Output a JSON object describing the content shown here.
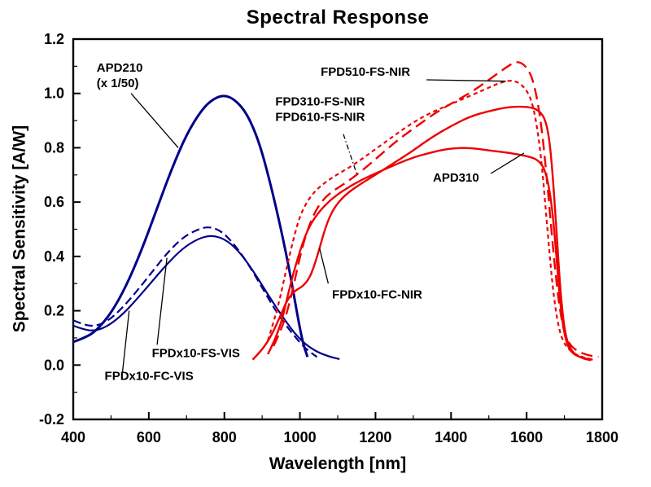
{
  "chart_data": {
    "type": "line",
    "title": "Spectral Response",
    "xlabel": "Wavelength [nm]",
    "ylabel": "Spectral Sensitivity [A/W]",
    "xlim": [
      400,
      1800
    ],
    "ylim": [
      -0.2,
      1.2
    ],
    "xticks": [
      400,
      600,
      800,
      1000,
      1200,
      1400,
      1600,
      1800
    ],
    "xticklabels": [
      "400",
      "600",
      "800",
      "1000",
      "1200",
      "1400",
      "1600",
      "1800"
    ],
    "yticks": [
      -0.2,
      0.0,
      0.2,
      0.4,
      0.6,
      0.8,
      1.0,
      1.2
    ],
    "yticklabels": [
      "-0.2",
      "0.0",
      "0.2",
      "0.4",
      "0.6",
      "0.8",
      "1.0",
      "1.2"
    ],
    "x_minor_step": 100,
    "y_minor_step": 0.1,
    "grid": false,
    "legend": "inline-annotations",
    "colors": {
      "vis_series": "#00008B",
      "nir_series": "#EE0000",
      "axis": "#000000"
    },
    "series": [
      {
        "id": "apd210",
        "name": "APD210 (x 1/50)",
        "color": "#00008B",
        "style": "solid",
        "width": 3,
        "points": [
          [
            400,
            0.085
          ],
          [
            430,
            0.1
          ],
          [
            460,
            0.125
          ],
          [
            500,
            0.19
          ],
          [
            540,
            0.29
          ],
          [
            580,
            0.42
          ],
          [
            620,
            0.57
          ],
          [
            660,
            0.72
          ],
          [
            700,
            0.85
          ],
          [
            740,
            0.94
          ],
          [
            770,
            0.98
          ],
          [
            800,
            0.995
          ],
          [
            830,
            0.975
          ],
          [
            860,
            0.925
          ],
          [
            890,
            0.83
          ],
          [
            920,
            0.68
          ],
          [
            950,
            0.5
          ],
          [
            975,
            0.33
          ],
          [
            995,
            0.17
          ],
          [
            1008,
            0.08
          ],
          [
            1020,
            0.03
          ]
        ]
      },
      {
        "id": "fpdx10-fs-vis",
        "name": "FPDx10-FS-VIS",
        "color": "#00008B",
        "style": "dash",
        "width": 2.2,
        "points": [
          [
            400,
            0.165
          ],
          [
            425,
            0.15
          ],
          [
            455,
            0.142
          ],
          [
            490,
            0.16
          ],
          [
            530,
            0.21
          ],
          [
            570,
            0.275
          ],
          [
            610,
            0.345
          ],
          [
            650,
            0.415
          ],
          [
            690,
            0.47
          ],
          [
            730,
            0.5
          ],
          [
            760,
            0.51
          ],
          [
            790,
            0.495
          ],
          [
            820,
            0.455
          ],
          [
            860,
            0.38
          ],
          [
            900,
            0.285
          ],
          [
            940,
            0.19
          ],
          [
            980,
            0.115
          ],
          [
            1015,
            0.06
          ],
          [
            1045,
            0.03
          ]
        ]
      },
      {
        "id": "fpdx10-fc-vis",
        "name": "FPDx10-FC-VIS",
        "color": "#00008B",
        "style": "solid",
        "width": 2.2,
        "points": [
          [
            400,
            0.145
          ],
          [
            425,
            0.132
          ],
          [
            455,
            0.125
          ],
          [
            490,
            0.142
          ],
          [
            530,
            0.185
          ],
          [
            570,
            0.245
          ],
          [
            610,
            0.31
          ],
          [
            650,
            0.375
          ],
          [
            690,
            0.43
          ],
          [
            730,
            0.465
          ],
          [
            765,
            0.478
          ],
          [
            800,
            0.465
          ],
          [
            835,
            0.425
          ],
          [
            875,
            0.35
          ],
          [
            915,
            0.26
          ],
          [
            955,
            0.175
          ],
          [
            995,
            0.1
          ],
          [
            1035,
            0.055
          ],
          [
            1075,
            0.032
          ],
          [
            1105,
            0.022
          ]
        ]
      },
      {
        "id": "fpd510-fs-nir",
        "name": "FPD510-FS-NIR",
        "color": "#EE0000",
        "style": "longdash",
        "width": 2.4,
        "points": [
          [
            930,
            0.07
          ],
          [
            955,
            0.14
          ],
          [
            980,
            0.27
          ],
          [
            1000,
            0.4
          ],
          [
            1020,
            0.5
          ],
          [
            1045,
            0.58
          ],
          [
            1075,
            0.63
          ],
          [
            1110,
            0.66
          ],
          [
            1160,
            0.71
          ],
          [
            1210,
            0.77
          ],
          [
            1260,
            0.83
          ],
          [
            1310,
            0.88
          ],
          [
            1360,
            0.93
          ],
          [
            1410,
            0.97
          ],
          [
            1460,
            1.01
          ],
          [
            1510,
            1.06
          ],
          [
            1550,
            1.1
          ],
          [
            1575,
            1.12
          ],
          [
            1600,
            1.1
          ],
          [
            1620,
            1.04
          ],
          [
            1640,
            0.88
          ],
          [
            1658,
            0.62
          ],
          [
            1675,
            0.35
          ],
          [
            1692,
            0.16
          ],
          [
            1710,
            0.08
          ],
          [
            1735,
            0.05
          ],
          [
            1765,
            0.035
          ],
          [
            1790,
            0.03
          ]
        ]
      },
      {
        "id": "fpd310-610-fs-nir",
        "name": "FPD310-FS-NIR / FPD610-FS-NIR",
        "color": "#EE0000",
        "style": "shortdash",
        "width": 2.2,
        "points": [
          [
            915,
            0.09
          ],
          [
            940,
            0.2
          ],
          [
            962,
            0.34
          ],
          [
            982,
            0.46
          ],
          [
            1000,
            0.55
          ],
          [
            1022,
            0.61
          ],
          [
            1050,
            0.655
          ],
          [
            1090,
            0.695
          ],
          [
            1140,
            0.735
          ],
          [
            1190,
            0.785
          ],
          [
            1240,
            0.835
          ],
          [
            1290,
            0.885
          ],
          [
            1340,
            0.925
          ],
          [
            1390,
            0.955
          ],
          [
            1440,
            0.985
          ],
          [
            1490,
            1.015
          ],
          [
            1530,
            1.04
          ],
          [
            1565,
            1.05
          ],
          [
            1595,
            1.025
          ],
          [
            1618,
            0.96
          ],
          [
            1638,
            0.78
          ],
          [
            1655,
            0.5
          ],
          [
            1672,
            0.24
          ],
          [
            1690,
            0.1
          ],
          [
            1715,
            0.05
          ],
          [
            1745,
            0.03
          ],
          [
            1775,
            0.02
          ]
        ]
      },
      {
        "id": "fpdx10-fc-nir",
        "name": "FPDx10-FC-NIR",
        "color": "#EE0000",
        "style": "solid",
        "width": 2.4,
        "points": [
          [
            875,
            0.02
          ],
          [
            900,
            0.055
          ],
          [
            925,
            0.11
          ],
          [
            948,
            0.18
          ],
          [
            968,
            0.245
          ],
          [
            988,
            0.275
          ],
          [
            1008,
            0.29
          ],
          [
            1028,
            0.325
          ],
          [
            1048,
            0.41
          ],
          [
            1068,
            0.51
          ],
          [
            1088,
            0.575
          ],
          [
            1118,
            0.625
          ],
          [
            1158,
            0.665
          ],
          [
            1200,
            0.7
          ],
          [
            1250,
            0.745
          ],
          [
            1300,
            0.79
          ],
          [
            1350,
            0.84
          ],
          [
            1400,
            0.88
          ],
          [
            1450,
            0.915
          ],
          [
            1500,
            0.935
          ],
          [
            1550,
            0.95
          ],
          [
            1600,
            0.952
          ],
          [
            1632,
            0.94
          ],
          [
            1652,
            0.9
          ],
          [
            1665,
            0.78
          ],
          [
            1678,
            0.52
          ],
          [
            1690,
            0.26
          ],
          [
            1702,
            0.11
          ],
          [
            1718,
            0.05
          ],
          [
            1745,
            0.025
          ],
          [
            1770,
            0.018
          ]
        ]
      },
      {
        "id": "apd310",
        "name": "APD310",
        "color": "#EE0000",
        "style": "solid",
        "width": 2.4,
        "points": [
          [
            915,
            0.04
          ],
          [
            945,
            0.12
          ],
          [
            970,
            0.27
          ],
          [
            995,
            0.4
          ],
          [
            1020,
            0.5
          ],
          [
            1050,
            0.565
          ],
          [
            1090,
            0.62
          ],
          [
            1140,
            0.665
          ],
          [
            1190,
            0.7
          ],
          [
            1240,
            0.73
          ],
          [
            1290,
            0.76
          ],
          [
            1340,
            0.78
          ],
          [
            1395,
            0.798
          ],
          [
            1450,
            0.8
          ],
          [
            1500,
            0.79
          ],
          [
            1550,
            0.782
          ],
          [
            1600,
            0.77
          ],
          [
            1632,
            0.755
          ],
          [
            1652,
            0.71
          ],
          [
            1668,
            0.58
          ],
          [
            1680,
            0.38
          ],
          [
            1692,
            0.18
          ],
          [
            1705,
            0.08
          ],
          [
            1722,
            0.04
          ],
          [
            1750,
            0.025
          ],
          [
            1775,
            0.02
          ]
        ]
      }
    ],
    "annotations": [
      {
        "id": "apd210-label",
        "lines": [
          "APD210",
          "(x 1/50)"
        ],
        "x": 462,
        "y": 1.08,
        "align": "start",
        "leader": {
          "x1": 553,
          "y1": 1.0,
          "x2": 678,
          "y2": 0.8,
          "style": "solid"
        }
      },
      {
        "id": "fpd510-label",
        "lines": [
          "FPD510-FS-NIR"
        ],
        "x": 1055,
        "y": 1.065,
        "align": "start",
        "leader": {
          "x1": 1335,
          "y1": 1.05,
          "x2": 1545,
          "y2": 1.045,
          "style": "solid"
        }
      },
      {
        "id": "fpd310-610-label",
        "lines": [
          "FPD310-FS-NIR",
          "FPD610-FS-NIR"
        ],
        "x": 935,
        "y": 0.955,
        "align": "start",
        "leader": {
          "x1": 1115,
          "y1": 0.85,
          "x2": 1150,
          "y2": 0.705,
          "style": "dashdot"
        }
      },
      {
        "id": "apd310-label",
        "lines": [
          "APD310"
        ],
        "x": 1352,
        "y": 0.675,
        "align": "start",
        "leader": {
          "x1": 1505,
          "y1": 0.705,
          "x2": 1593,
          "y2": 0.78,
          "style": "solid"
        }
      },
      {
        "id": "fpdx10-fc-nir-label",
        "lines": [
          "FPDx10-FC-NIR"
        ],
        "x": 1085,
        "y": 0.245,
        "align": "start",
        "leader": {
          "x1": 1075,
          "y1": 0.3,
          "x2": 1052,
          "y2": 0.43,
          "style": "solid"
        }
      },
      {
        "id": "fpdx10-fs-vis-label",
        "lines": [
          "FPDx10-FS-VIS"
        ],
        "x": 608,
        "y": 0.03,
        "align": "start",
        "leader": {
          "x1": 622,
          "y1": 0.075,
          "x2": 648,
          "y2": 0.395,
          "style": "solid"
        }
      },
      {
        "id": "fpdx10-fc-vis-label",
        "lines": [
          "FPDx10-FC-VIS"
        ],
        "x": 483,
        "y": -0.055,
        "align": "start",
        "leader": {
          "x1": 530,
          "y1": -0.03,
          "x2": 548,
          "y2": 0.2,
          "style": "solid"
        }
      }
    ]
  }
}
